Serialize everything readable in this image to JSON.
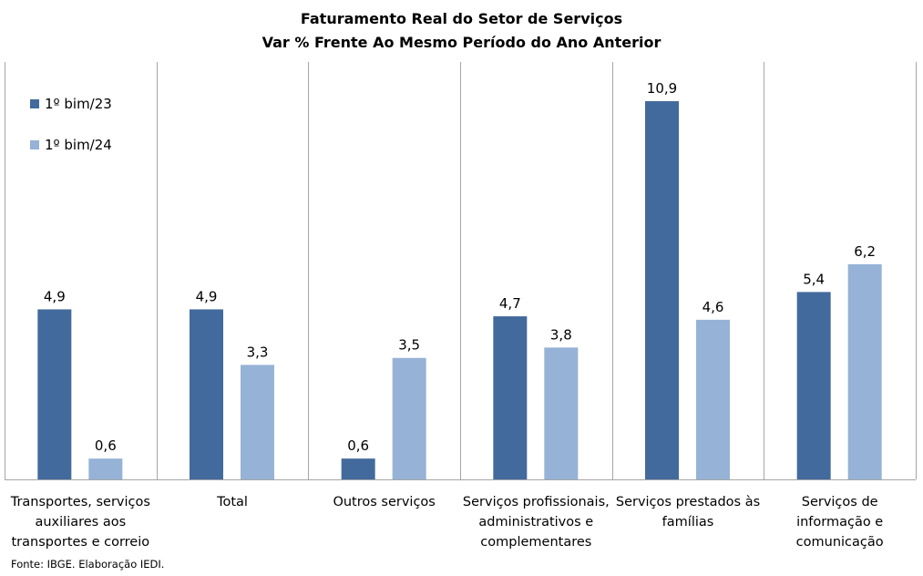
{
  "chart_data": {
    "type": "bar",
    "title": "Faturamento  Real do Setor de Serviços",
    "subtitle": "Var % Frente Ao Mesmo Período do Ano Anterior",
    "xlabel": "",
    "ylabel": "",
    "ylim": [
      0,
      10.9
    ],
    "grid": false,
    "legend_position": "top-left",
    "categories": [
      "Transportes, serviços auxiliares aos transportes e correio",
      "Total",
      "Outros serviços",
      "Serviços profissionais, administrativos e complementares",
      "Serviços prestados às famílias",
      "Serviços de informação e comunicação"
    ],
    "category_lines": [
      [
        "Transportes, serviços",
        "auxiliares aos",
        "transportes e correio"
      ],
      [
        "Total"
      ],
      [
        "Outros serviços"
      ],
      [
        "Serviços profissionais,",
        "administrativos e",
        "complementares"
      ],
      [
        "Serviços prestados às",
        "famílias"
      ],
      [
        "Serviços de",
        "informação e",
        "comunicação"
      ]
    ],
    "series": [
      {
        "name": "1º bim/23",
        "color": "#436a9c",
        "values": [
          4.9,
          4.9,
          0.6,
          4.7,
          10.9,
          5.4
        ],
        "labels": [
          "4,9",
          "4,9",
          "0,6",
          "4,7",
          "10,9",
          "5,4"
        ]
      },
      {
        "name": "1º bim/24",
        "color": "#96b2d6",
        "values": [
          0.6,
          3.3,
          3.5,
          3.8,
          4.6,
          6.2
        ],
        "labels": [
          "0,6",
          "3,3",
          "3,5",
          "3,8",
          "4,6",
          "6,2"
        ]
      }
    ],
    "source": "Fonte: IBGE. Elaboração IEDI."
  }
}
